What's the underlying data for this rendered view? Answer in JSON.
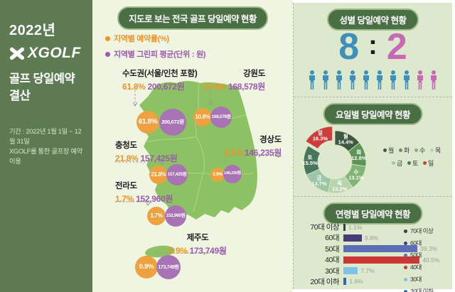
{
  "sidebar": {
    "year": "2022년",
    "logo_text": "XGOLF",
    "title": "골프 당일예약 결산",
    "period_line1": "기간 : 2022년 1월 1일 ~ 12월 31일",
    "period_line2": "XGOLF를 통한 골프장 예약 이용"
  },
  "map_section": {
    "title": "지도로 보는 전국 골프 당일예약 현황",
    "legend": [
      {
        "label": "지역별 예약률(%)",
        "color": "#ef9426"
      },
      {
        "label": "지역별 그린피 평균(단위 : 원)",
        "color": "#9c59ad"
      }
    ],
    "regions": [
      {
        "name": "수도권(서울/인천 포함)",
        "rate": "61.8%",
        "fee": "200,672원"
      },
      {
        "name": "강원도",
        "rate": "10.8%",
        "fee": "168,578원"
      },
      {
        "name": "충청도",
        "rate": "21.8%",
        "fee": "157,425원"
      },
      {
        "name": "경상도",
        "rate": "2.9%",
        "fee": "146,235원"
      },
      {
        "name": "전라도",
        "rate": "1.7%",
        "fee": "152,960원"
      },
      {
        "name": "제주도",
        "rate": "0.9%",
        "fee": "173,749원"
      }
    ],
    "rate_circle_color": "#eea13f",
    "fee_circle_color": "#a873b4"
  },
  "gender_section": {
    "title": "성별 당일예약 현황",
    "male_ratio": "8",
    "separator": ":",
    "female_ratio": "2",
    "male_icon_count": 8,
    "female_icon_count": 2,
    "male_color": "#3e90bb",
    "female_color": "#c76ab3"
  },
  "weekday_section": {
    "title": "요일별 당일예약 현황"
  },
  "age_section": {
    "title": "연령별 당일예약 현황"
  },
  "chart_data": [
    {
      "type": "pie",
      "donut": true,
      "title": "요일별 당일예약 현황",
      "labels": [
        "월",
        "화",
        "수",
        "목",
        "금",
        "토",
        "일"
      ],
      "values": [
        14.4,
        12.8,
        13.1,
        13.2,
        14.7,
        15.5,
        16.3
      ],
      "colors": [
        "#3d5a41",
        "#5f9459",
        "#80b576",
        "#b8d4ae",
        "#9ec5a6",
        "#47765b",
        "#ce3d3b"
      ],
      "exploded_index": 6,
      "legend_rows": [
        [
          "월",
          "화",
          "수",
          "목"
        ],
        [
          "금",
          "토",
          "일"
        ]
      ],
      "legend_position": "right"
    },
    {
      "type": "bar",
      "orientation": "horizontal",
      "title": "연령별 당일예약 현황",
      "categories": [
        "70대 이상",
        "60대",
        "50대",
        "40대",
        "30대",
        "20대 이하"
      ],
      "values": [
        1.1,
        9.8,
        39.3,
        40.5,
        7.7,
        1.6
      ],
      "colors": [
        "#2f3c56",
        "#483a76",
        "#5d6db6",
        "#ca3734",
        "#7ec4e8",
        "#3f64ae"
      ],
      "xlim": [
        0,
        45
      ],
      "value_label_color": "#9b9b9b",
      "legend_position": "right"
    }
  ]
}
